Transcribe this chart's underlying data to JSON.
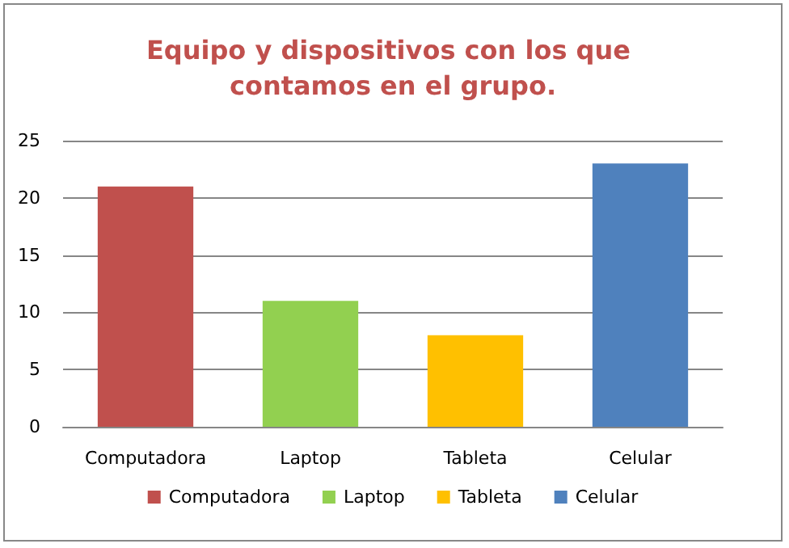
{
  "chart_data": {
    "type": "bar",
    "title": "Equipo y dispositivos con los que contamos en el grupo.",
    "categories": [
      "Computadora",
      "Laptop",
      "Tableta",
      "Celular"
    ],
    "stacked": true,
    "series": [
      {
        "name": "Computadora",
        "color": "#c0504d",
        "values": [
          21,
          null,
          null,
          null
        ]
      },
      {
        "name": "Laptop",
        "color": "#92d050",
        "values": [
          null,
          11,
          null,
          null
        ]
      },
      {
        "name": "Tableta",
        "color": "#ffc000",
        "values": [
          null,
          null,
          8,
          null
        ]
      },
      {
        "name": "Celular",
        "color": "#4f81bd",
        "values": [
          null,
          null,
          null,
          23
        ]
      }
    ],
    "ylim": [
      0,
      25
    ],
    "yticks": [
      0,
      5,
      10,
      15,
      20,
      25
    ],
    "grid": "y",
    "legend": "bottom"
  }
}
